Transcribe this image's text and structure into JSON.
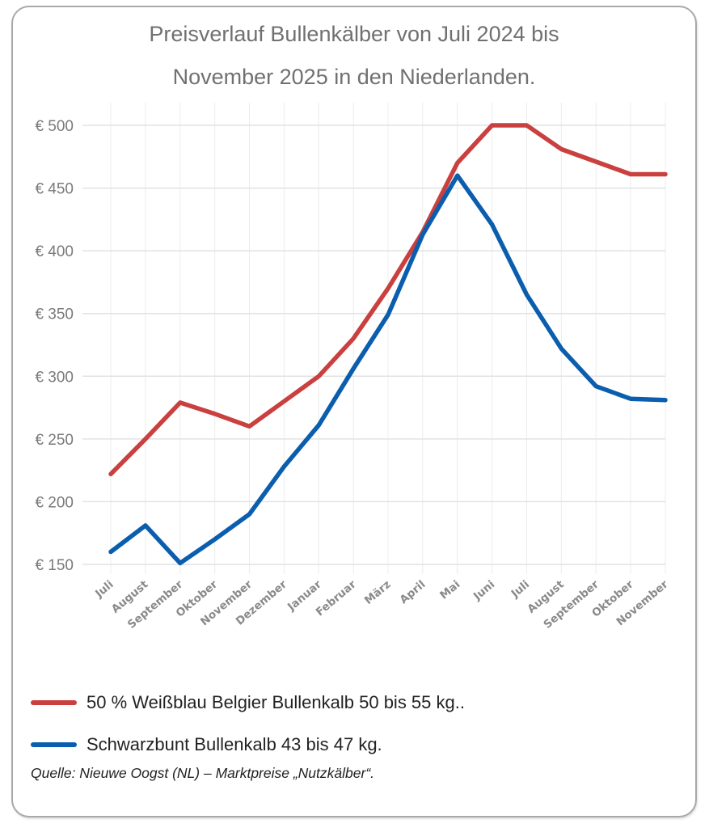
{
  "chart_data": {
    "type": "line",
    "title": "Preisverlauf Bullenkälber von Juli 2024 bis November 2025  in den Niederlanden.",
    "title_lines": [
      "Preisverlauf Bullenkälber von Juli 2024 bis",
      "November 2025  in den Niederlanden."
    ],
    "xlabel": "",
    "ylabel": "",
    "categories": [
      "Juli",
      "August",
      "September",
      "Oktober",
      "November",
      "Dezember",
      "Januar",
      "Februar",
      "März",
      "April",
      "Mai",
      "Juni",
      "Juli",
      "August",
      "September",
      "Oktober",
      "November"
    ],
    "ylim": [
      150,
      500
    ],
    "yticks": [
      150,
      200,
      250,
      300,
      350,
      400,
      450,
      500
    ],
    "ytick_labels": [
      "€ 150",
      "€ 200",
      "€ 250",
      "€ 300",
      "€ 350",
      "€ 400",
      "€ 450",
      "€ 500"
    ],
    "grid": true,
    "legend_position": "bottom",
    "series": [
      {
        "name": "50 % Weißblau Belgier Bullenkalb 50 bis 55 kg..",
        "color": "#c9403f",
        "values": [
          222,
          250,
          279,
          270,
          260,
          280,
          300,
          330,
          370,
          415,
          470,
          500,
          500,
          481,
          471,
          461,
          461
        ]
      },
      {
        "name": "Schwarzbunt Bullenkalb 43 bis 47 kg.",
        "color": "#0b5eae",
        "values": [
          160,
          181,
          151,
          170,
          190,
          228,
          261,
          306,
          349,
          413,
          460,
          421,
          365,
          322,
          292,
          282,
          281
        ]
      }
    ],
    "source": "Quelle: Nieuwe Oogst (NL) – Marktpreise „Nutzkälber“."
  }
}
